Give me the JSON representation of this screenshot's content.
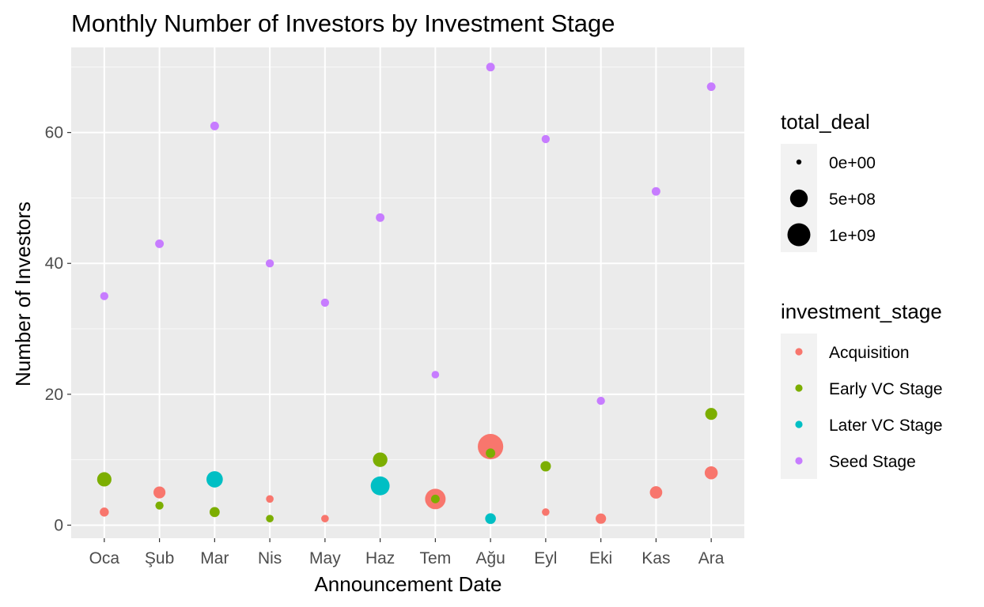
{
  "chart_data": {
    "type": "scatter",
    "title": "Monthly Number of Investors by Investment Stage",
    "xlabel": "Announcement Date",
    "ylabel": "Number of Investors",
    "categories": [
      "Oca",
      "Şub",
      "Mar",
      "Nis",
      "May",
      "Haz",
      "Tem",
      "Ağu",
      "Eyl",
      "Eki",
      "Kas",
      "Ara"
    ],
    "ylim": [
      -2,
      73
    ],
    "yticks": [
      0,
      20,
      40,
      60
    ],
    "grid": true,
    "legend_position": "right",
    "size_legend": {
      "title": "total_deal",
      "entries": [
        {
          "label": "0e+00",
          "value": 0
        },
        {
          "label": "5e+08",
          "value": 500000000
        },
        {
          "label": "1e+09",
          "value": 1000000000
        }
      ]
    },
    "color_legend": {
      "title": "investment_stage"
    },
    "series": [
      {
        "name": "Acquisition",
        "color": "#F8766D",
        "points": [
          {
            "x": "Oca",
            "y": 2,
            "deal": 50000000
          },
          {
            "x": "Şub",
            "y": 5,
            "deal": 150000000
          },
          {
            "x": "Mar",
            "y": 2,
            "deal": 60000000
          },
          {
            "x": "Nis",
            "y": 4,
            "deal": 20000000
          },
          {
            "x": "May",
            "y": 1,
            "deal": 20000000
          },
          {
            "x": "Tem",
            "y": 4,
            "deal": 750000000
          },
          {
            "x": "Ağu",
            "y": 12,
            "deal": 1300000000
          },
          {
            "x": "Eyl",
            "y": 2,
            "deal": 20000000
          },
          {
            "x": "Eki",
            "y": 1,
            "deal": 90000000
          },
          {
            "x": "Kas",
            "y": 5,
            "deal": 170000000
          },
          {
            "x": "Ara",
            "y": 8,
            "deal": 200000000
          }
        ]
      },
      {
        "name": "Early VC Stage",
        "color": "#7CAE00",
        "points": [
          {
            "x": "Oca",
            "y": 7,
            "deal": 270000000
          },
          {
            "x": "Şub",
            "y": 3,
            "deal": 30000000
          },
          {
            "x": "Mar",
            "y": 2,
            "deal": 80000000
          },
          {
            "x": "Nis",
            "y": 1,
            "deal": 20000000
          },
          {
            "x": "Haz",
            "y": 10,
            "deal": 280000000
          },
          {
            "x": "Tem",
            "y": 4,
            "deal": 40000000
          },
          {
            "x": "Ağu",
            "y": 11,
            "deal": 60000000
          },
          {
            "x": "Eyl",
            "y": 9,
            "deal": 90000000
          },
          {
            "x": "Ara",
            "y": 17,
            "deal": 150000000
          }
        ]
      },
      {
        "name": "Later VC Stage",
        "color": "#00BFC4",
        "points": [
          {
            "x": "Mar",
            "y": 7,
            "deal": 400000000
          },
          {
            "x": "Haz",
            "y": 6,
            "deal": 600000000
          },
          {
            "x": "Ağu",
            "y": 1,
            "deal": 100000000
          }
        ]
      },
      {
        "name": "Seed Stage",
        "color": "#C77CFF",
        "points": [
          {
            "x": "Oca",
            "y": 35,
            "deal": 30000000
          },
          {
            "x": "Şub",
            "y": 43,
            "deal": 40000000
          },
          {
            "x": "Mar",
            "y": 61,
            "deal": 40000000
          },
          {
            "x": "Nis",
            "y": 40,
            "deal": 30000000
          },
          {
            "x": "May",
            "y": 34,
            "deal": 30000000
          },
          {
            "x": "Haz",
            "y": 47,
            "deal": 40000000
          },
          {
            "x": "Tem",
            "y": 23,
            "deal": 20000000
          },
          {
            "x": "Ağu",
            "y": 70,
            "deal": 40000000
          },
          {
            "x": "Eyl",
            "y": 59,
            "deal": 30000000
          },
          {
            "x": "Eki",
            "y": 19,
            "deal": 30000000
          },
          {
            "x": "Kas",
            "y": 51,
            "deal": 40000000
          },
          {
            "x": "Ara",
            "y": 67,
            "deal": 40000000
          }
        ]
      }
    ]
  }
}
